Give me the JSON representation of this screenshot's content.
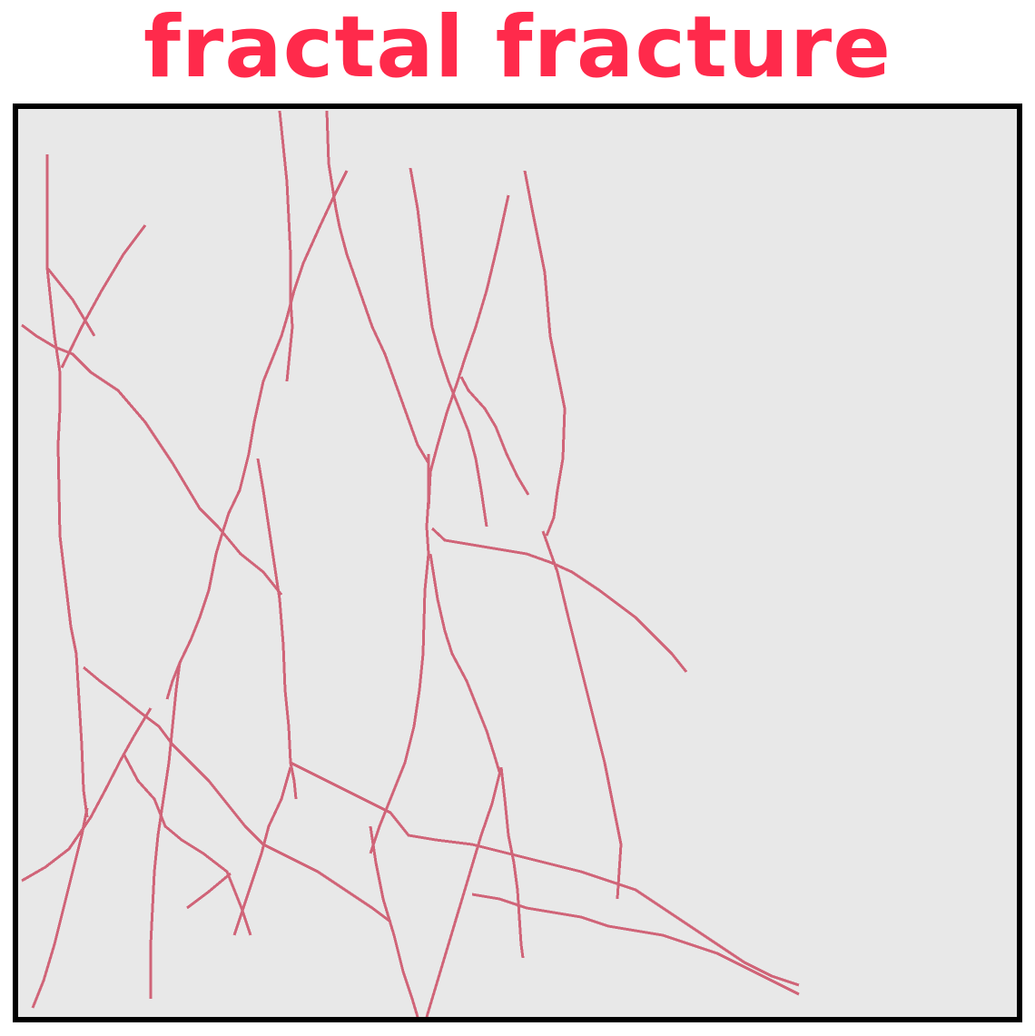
{
  "title": "fractal fracture",
  "colors": {
    "title": "#ff2a4b",
    "crack": "#d06478",
    "background": "#e8e8e8",
    "border": "#000000"
  }
}
